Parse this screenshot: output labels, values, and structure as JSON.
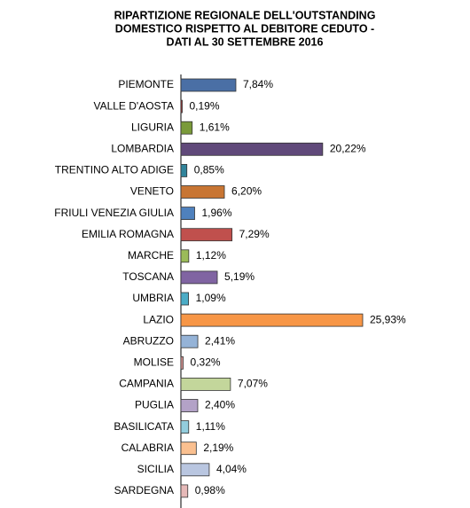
{
  "chart_data": {
    "type": "bar",
    "orientation": "horizontal",
    "title": [
      "RIPARTIZIONE REGIONALE DELL'OUTSTANDING",
      "DOMESTICO RISPETTO AL DEBITORE CEDUTO -",
      "DATI AL 30 SETTEMBRE 2016"
    ],
    "categories": [
      "PIEMONTE",
      "VALLE D'AOSTA",
      "LIGURIA",
      "LOMBARDIA",
      "TRENTINO ALTO ADIGE",
      "VENETO",
      "FRIULI VENEZIA GIULIA",
      "EMILIA ROMAGNA",
      "MARCHE",
      "TOSCANA",
      "UMBRIA",
      "LAZIO",
      "ABRUZZO",
      "MOLISE",
      "CAMPANIA",
      "PUGLIA",
      "BASILICATA",
      "CALABRIA",
      "SICILIA",
      "SARDEGNA"
    ],
    "values": [
      7.84,
      0.19,
      1.61,
      20.22,
      0.85,
      6.2,
      1.96,
      7.29,
      1.12,
      5.19,
      1.09,
      25.93,
      2.41,
      0.32,
      7.07,
      2.4,
      1.11,
      2.19,
      4.04,
      0.98
    ],
    "value_labels": [
      "7,84%",
      "0,19%",
      "1,61%",
      "20,22%",
      "0,85%",
      "6,20%",
      "1,96%",
      "7,29%",
      "1,12%",
      "5,19%",
      "1,09%",
      "25,93%",
      "2,41%",
      "0,32%",
      "7,07%",
      "2,40%",
      "1,11%",
      "2,19%",
      "4,04%",
      "0,98%"
    ],
    "colors": [
      "#4a6fa5",
      "#a83a3a",
      "#7a9a3a",
      "#60497a",
      "#31849b",
      "#c87533",
      "#4f81bd",
      "#c0504d",
      "#9bbb59",
      "#8064a2",
      "#4bacc6",
      "#f79646",
      "#95b3d7",
      "#d99694",
      "#c3d69b",
      "#b3a2c7",
      "#93cddd",
      "#fac090",
      "#b9c6e0",
      "#e6b9b8"
    ]
  }
}
